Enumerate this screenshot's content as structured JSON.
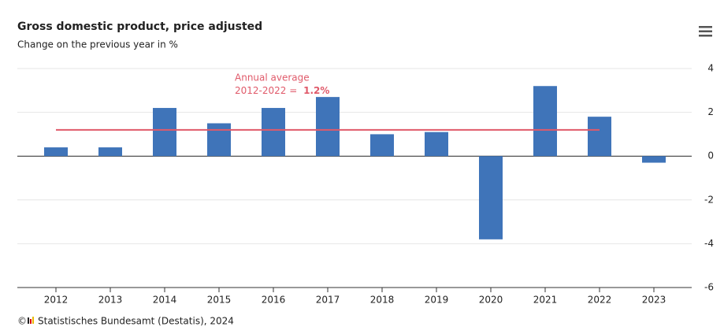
{
  "chart_data": {
    "type": "bar",
    "title": "Gross domestic product, price adjusted",
    "subtitle": "Change on the previous year in %",
    "categories": [
      "2012",
      "2013",
      "2014",
      "2015",
      "2016",
      "2017",
      "2018",
      "2019",
      "2020",
      "2021",
      "2022",
      "2023"
    ],
    "values": [
      0.4,
      0.4,
      2.2,
      1.5,
      2.2,
      2.7,
      1.0,
      1.1,
      -3.8,
      3.2,
      1.8,
      -0.3
    ],
    "color": "#3f74b9",
    "ylim": [
      -6,
      4
    ],
    "yticks": [
      -6,
      -4,
      -2,
      0,
      2,
      4
    ],
    "grid": true,
    "y_axis_side": "right",
    "average": {
      "value": 1.2,
      "label": "1.2%",
      "text": [
        "Annual average",
        "2012-2022 = "
      ],
      "from": "2012",
      "to": "2022",
      "color": "#e05a6a"
    },
    "source": {
      "symbol": "©",
      "text": "Statistisches Bundesamt (Destatis), 2024"
    }
  }
}
